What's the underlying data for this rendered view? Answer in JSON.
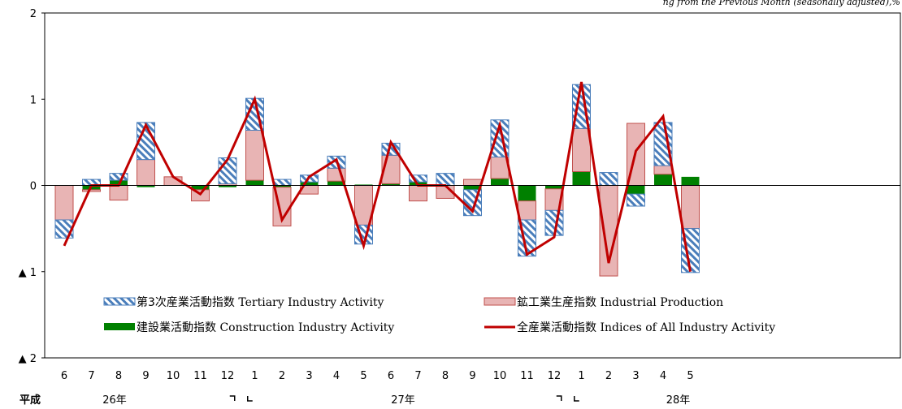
{
  "chart_data": {
    "type": "bar",
    "note": "ng from the Previous Month (seasonally adjusted),%",
    "era_label": "平成",
    "month_labels": [
      "6",
      "7",
      "8",
      "9",
      "10",
      "11",
      "12",
      "1",
      "2",
      "3",
      "4",
      "5",
      "6",
      "7",
      "8",
      "9",
      "10",
      "11",
      "12",
      "1",
      "2",
      "3",
      "4",
      "5"
    ],
    "year_labels": [
      "26年",
      "27年",
      "28年"
    ],
    "y_ticks": [
      "2",
      "1",
      "0",
      "▲ 1",
      "▲ 2"
    ],
    "ylim": [
      -2,
      2
    ],
    "series": [
      {
        "name": "建設業活動指数 Construction Industry Activity",
        "key": "construction",
        "color": "#008000",
        "values": [
          0,
          -0.05,
          0.06,
          -0.02,
          0,
          -0.05,
          -0.02,
          0.06,
          -0.02,
          0.04,
          0.05,
          0.01,
          0.02,
          0.04,
          0,
          -0.05,
          0.08,
          -0.18,
          -0.04,
          0.16,
          0,
          -0.1,
          0.13,
          0.1
        ]
      },
      {
        "name": "鉱工業生産指数 Industrial Production",
        "key": "industrial",
        "color": "#E8B4B4",
        "values": [
          -0.4,
          -0.02,
          -0.17,
          0.3,
          0.1,
          -0.13,
          0.02,
          0.58,
          -0.45,
          -0.1,
          0.15,
          -0.46,
          0.33,
          -0.18,
          -0.15,
          0.07,
          0.25,
          -0.22,
          -0.25,
          0.5,
          -1.05,
          0.72,
          0.1,
          -0.5
        ]
      },
      {
        "name": "第3次産業活動指数 Tertiary Industry Activity",
        "key": "tertiary",
        "color": "#4A7EBB",
        "values": [
          -0.21,
          0.07,
          0.08,
          0.43,
          0,
          0,
          0.3,
          0.37,
          0.07,
          0.08,
          0.14,
          -0.22,
          0.14,
          0.08,
          0.14,
          -0.3,
          0.43,
          -0.42,
          -0.29,
          0.51,
          0.15,
          -0.14,
          0.5,
          -0.51
        ]
      },
      {
        "name": "全産業活動指数 Indices of All Industry Activity",
        "key": "all",
        "color": "#C00000",
        "values": [
          -0.7,
          0,
          0,
          0.7,
          0.1,
          -0.1,
          0.3,
          1.0,
          -0.4,
          0.1,
          0.3,
          -0.7,
          0.5,
          0,
          0,
          -0.3,
          0.7,
          -0.8,
          -0.6,
          1.2,
          -0.9,
          0.4,
          0.8,
          -1.0
        ]
      }
    ],
    "legend": [
      {
        "key": "tertiary",
        "label_jp": "第3次産業活動指数",
        "label_en": "Tertiary Industry Activity"
      },
      {
        "key": "industrial",
        "label_jp": "鉱工業生産指数",
        "label_en": "Industrial Production"
      },
      {
        "key": "construction",
        "label_jp": "建設業活動指数",
        "label_en": "Construction Industry Activity"
      },
      {
        "key": "all",
        "label_jp": "全産業活動指数",
        "label_en": " Indices of All Industry Activity"
      }
    ],
    "legend_placement": "bottom-left-inside",
    "grid": false
  }
}
